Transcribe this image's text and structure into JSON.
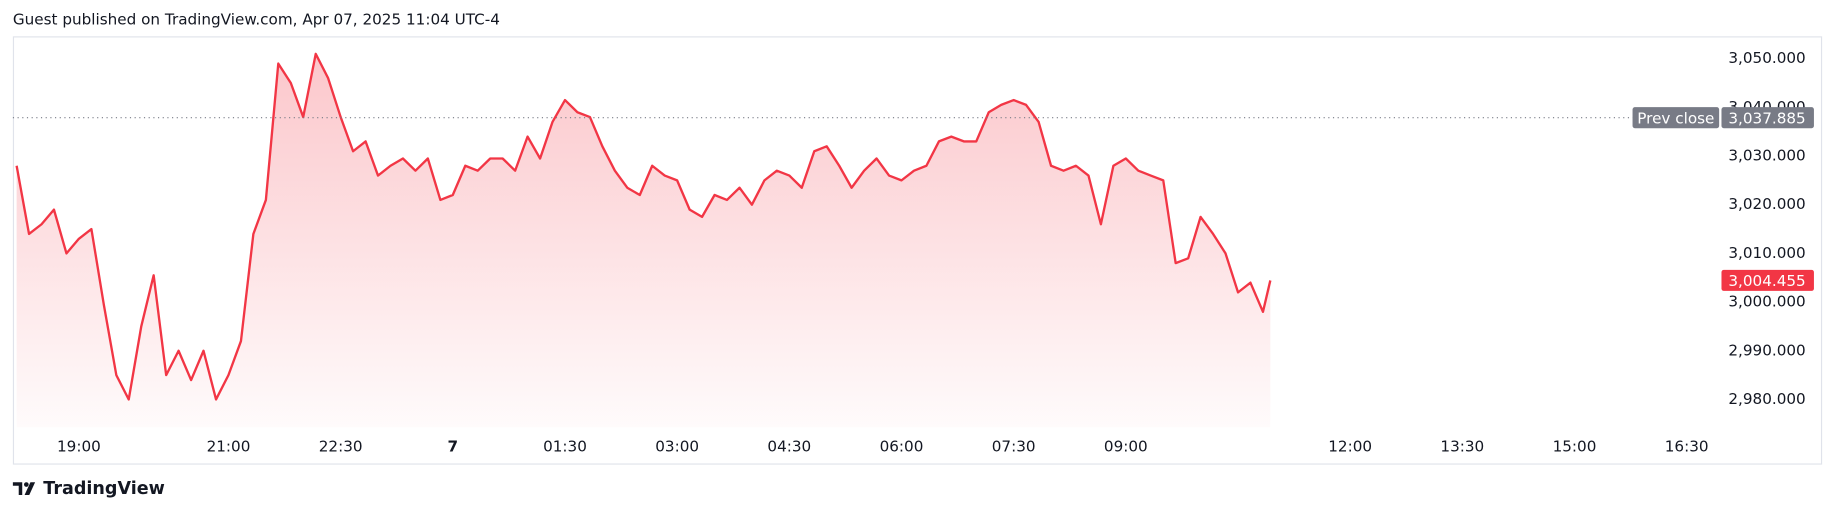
{
  "header": {
    "text": "Guest published on TradingView.com, Apr 07, 2025 11:04 UTC-4"
  },
  "footer": {
    "brand": "TradingView"
  },
  "chart_data": {
    "type": "area",
    "series": [
      {
        "name": "Price",
        "color": "#f23645",
        "values": [
          3028,
          3014,
          3016,
          3019,
          3010,
          3013,
          3015,
          2999.5,
          2985,
          2980,
          2995,
          3005.5,
          2985,
          2990,
          2984,
          2990,
          2980,
          2985,
          2992,
          3014,
          3021,
          3049,
          3045,
          3038,
          3051,
          3046,
          3038,
          3031,
          3033,
          3026,
          3028,
          3029.5,
          3027,
          3029.5,
          3021,
          3022,
          3028,
          3027,
          3029.5,
          3029.5,
          3027,
          3034,
          3029.5,
          3037,
          3041.5,
          3039,
          3038,
          3032,
          3027,
          3023.5,
          3022,
          3028,
          3026,
          3025,
          3019,
          3017.5,
          3022,
          3021,
          3023.5,
          3020,
          3025,
          3027,
          3026,
          3023.5,
          3031,
          3032,
          3028,
          3023.5,
          3027,
          3029.5,
          3026,
          3025,
          3027,
          3028,
          3033,
          3034,
          3033,
          3033,
          3039,
          3040.5,
          3041.5,
          3040.5,
          3037,
          3028,
          3027,
          3028,
          3026,
          3016,
          3028,
          3029.5,
          3027,
          3026,
          3025,
          3008,
          3009,
          3017.5,
          3014,
          3010,
          3002,
          3004,
          2998,
          3004.455
        ]
      }
    ],
    "x": [
      "18:10",
      "18:20",
      "18:30",
      "18:40",
      "18:50",
      "19:00",
      "19:10",
      "19:20",
      "19:30",
      "19:40",
      "19:50",
      "20:00",
      "20:10",
      "20:20",
      "20:30",
      "20:40",
      "20:50",
      "21:00",
      "21:10",
      "21:20",
      "21:30",
      "21:40",
      "21:50",
      "22:00",
      "22:10",
      "22:20",
      "22:30",
      "22:40",
      "22:50",
      "23:00",
      "23:10",
      "23:20",
      "23:30",
      "23:40",
      "23:50",
      "00:00",
      "00:10",
      "00:20",
      "00:30",
      "00:40",
      "00:50",
      "01:00",
      "01:10",
      "01:20",
      "01:30",
      "01:40",
      "01:50",
      "02:00",
      "02:10",
      "02:20",
      "02:30",
      "02:40",
      "02:50",
      "03:00",
      "03:10",
      "03:20",
      "03:30",
      "03:40",
      "03:50",
      "04:00",
      "04:10",
      "04:20",
      "04:30",
      "04:40",
      "04:50",
      "05:00",
      "05:10",
      "05:20",
      "05:30",
      "05:40",
      "05:50",
      "06:00",
      "06:10",
      "06:20",
      "06:30",
      "06:40",
      "06:50",
      "07:00",
      "07:10",
      "07:20",
      "07:30",
      "07:40",
      "07:50",
      "08:00",
      "08:10",
      "08:20",
      "08:30",
      "08:40",
      "08:50",
      "09:00",
      "09:10",
      "09:20",
      "09:30",
      "09:40",
      "09:50",
      "10:00",
      "10:10",
      "10:20",
      "10:30",
      "10:40",
      "10:50",
      "10:56"
    ],
    "xlim": [
      "18:07",
      "16:57"
    ],
    "xticks": [
      "19:00",
      "21:00",
      "22:30",
      {
        "value": "00:00",
        "label": "7"
      },
      "01:30",
      "03:00",
      "04:30",
      "06:00",
      "07:30",
      "09:00",
      "12:00",
      "13:30",
      "15:00",
      "16:30"
    ],
    "ylim": [
      2974.3,
      3054.6
    ],
    "yticks": [
      {
        "value": 2980,
        "label": "2,980.000"
      },
      {
        "value": 2990,
        "label": "2,990.000"
      },
      {
        "value": 3000,
        "label": "3,000.000"
      },
      {
        "value": 3010,
        "label": "3,010.000"
      },
      {
        "value": 3020,
        "label": "3,020.000"
      },
      {
        "value": 3030,
        "label": "3,030.000"
      },
      {
        "value": 3040,
        "label": "3,040.000"
      },
      {
        "value": 3050,
        "label": "3,050.000"
      }
    ],
    "prev_close": {
      "label": "Prev close",
      "value": 3037.885,
      "value_label": "3,037.885",
      "color": "#787b86"
    },
    "last_price": {
      "value": 3004.455,
      "label": "3,004.455",
      "color": "#f23645"
    }
  }
}
